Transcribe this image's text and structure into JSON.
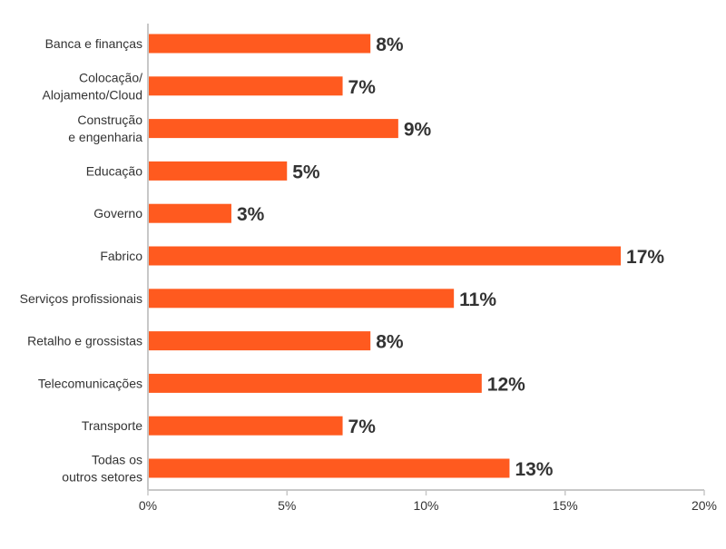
{
  "chart_data": {
    "type": "bar",
    "orientation": "horizontal",
    "categories": [
      [
        "Banca e finanças"
      ],
      [
        "Colocação/",
        "Alojamento/Cloud"
      ],
      [
        "Construção",
        "e engenharia"
      ],
      [
        "Educação"
      ],
      [
        "Governo"
      ],
      [
        "Fabrico"
      ],
      [
        "Serviços profissionais"
      ],
      [
        "Retalho e grossistas"
      ],
      [
        "Telecomunicações"
      ],
      [
        "Transporte"
      ],
      [
        "Todas os",
        "outros setores"
      ]
    ],
    "values": [
      8,
      7,
      9,
      5,
      3,
      17,
      11,
      8,
      12,
      7,
      13
    ],
    "data_labels": [
      "8%",
      "7%",
      "9%",
      "5%",
      "3%",
      "17%",
      "11%",
      "8%",
      "12%",
      "7%",
      "13%"
    ],
    "xlim": [
      0,
      20
    ],
    "xticks": [
      0,
      5,
      10,
      15,
      20
    ],
    "xtick_labels": [
      "0%",
      "5%",
      "10%",
      "15%",
      "20%"
    ],
    "grid": false,
    "colors": {
      "bar": "#ff5a1f",
      "axis": "#c8c8c8",
      "label": "#333333"
    }
  }
}
